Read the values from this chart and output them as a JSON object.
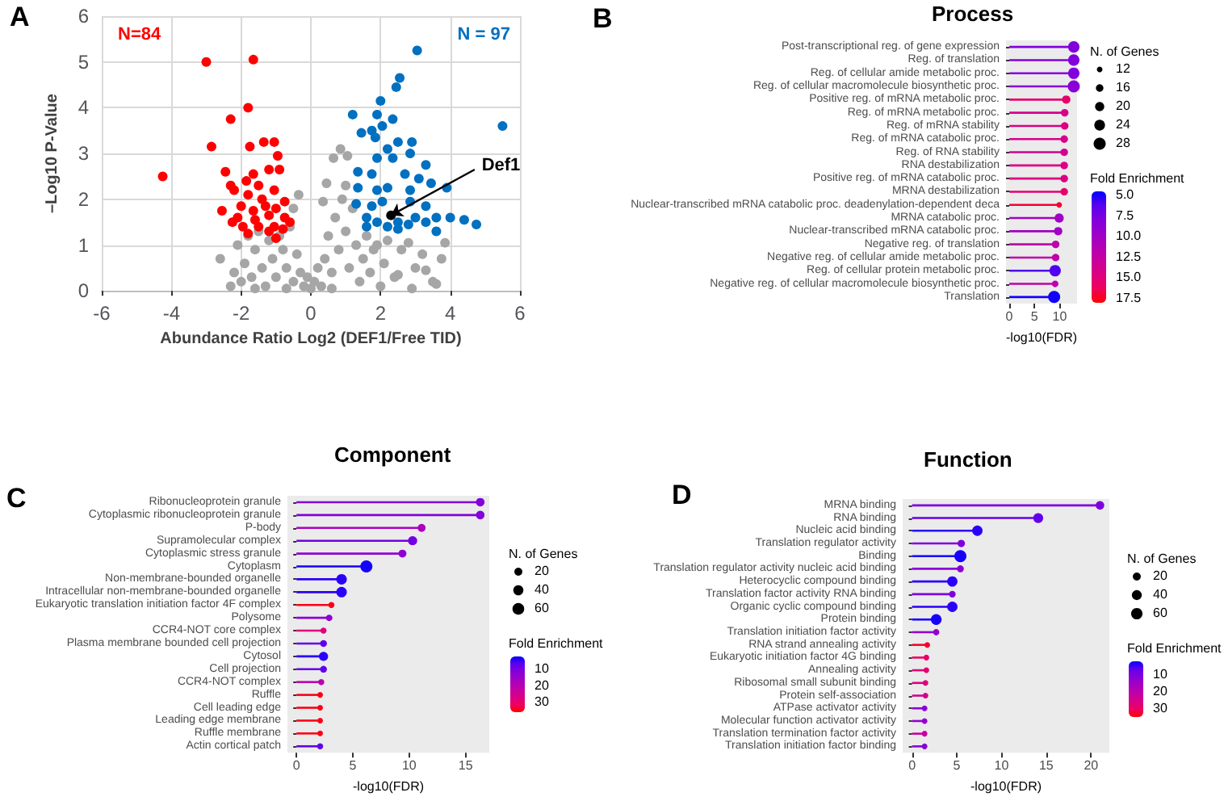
{
  "chart_data": [
    {
      "type": "scatter",
      "xlabel": "Abundance Ratio Log2 (DEF1/Free TID)",
      "ylabel": "–Log10 P-Value",
      "xlim": [
        -6,
        6
      ],
      "ylim": [
        0,
        6
      ],
      "xticks": [
        -6,
        -4,
        -2,
        0,
        2,
        4,
        6
      ],
      "yticks": [
        0,
        1,
        2,
        3,
        4,
        5,
        6
      ],
      "grid": true,
      "marker": "circle",
      "annotations": [
        "A",
        {
          "text": "Def1",
          "x": 2.3,
          "y": 1.65
        }
      ],
      "series": [
        {
          "color": "#a6a6a6",
          "x": [
            -2.6,
            -2.3,
            -2.2,
            -2.1,
            -2.0,
            -1.9,
            -1.8,
            -1.7,
            -1.6,
            -1.5,
            -1.4,
            -1.3,
            -1.2,
            -1.1,
            -1.0,
            -0.9,
            -0.8,
            -0.7,
            -0.6,
            -0.5,
            -0.5,
            -0.35,
            -0.4,
            -0.3,
            -0.2,
            -0.1,
            0,
            0.1,
            0.2,
            0.3,
            0.35,
            0.4,
            0.45,
            0.5,
            0.6,
            0.65,
            0.7,
            0.8,
            0.85,
            0.9,
            1.0,
            1.05,
            1.0,
            1.1,
            1.2,
            1.3,
            1.4,
            1.5,
            1.6,
            1.7,
            1.8,
            1.9,
            2.0,
            2.1,
            2.2,
            2.4,
            2.5,
            2.6,
            2.8,
            2.9,
            3.0,
            3.2,
            3.3,
            3.5,
            3.6,
            3.75,
            3.85,
            -1.6,
            -0.7,
            0.6
          ],
          "values": [
            0.7,
            0.1,
            0.4,
            1.0,
            0.2,
            0.6,
            1.2,
            0.3,
            0.9,
            1.3,
            0.5,
            0.1,
            1.1,
            0.7,
            0.3,
            1.2,
            0.9,
            0.5,
            1.4,
            0.2,
            1.8,
            2.1,
            0.8,
            0.4,
            0.1,
            0.3,
            0.05,
            0.2,
            0.5,
            0.1,
            1.95,
            0.7,
            2.35,
            1.2,
            0.4,
            2.9,
            1.6,
            0.9,
            3.1,
            2.0,
            1.3,
            2.95,
            2.3,
            0.5,
            1.8,
            1.0,
            0.2,
            0.7,
            1.2,
            0.4,
            0.9,
            1.0,
            0.1,
            0.6,
            1.1,
            0.3,
            0.35,
            0.9,
            1.05,
            0.05,
            0.5,
            0.8,
            0.45,
            0.2,
            0.15,
            0.7,
            1.05,
            0.05,
            0.05,
            0.05
          ]
        },
        {
          "name": "N=84",
          "color": "#ff0000",
          "x": [
            -3.0,
            -1.65,
            -1.8,
            -2.3,
            -2.85,
            -1.75,
            -4.25,
            -2.45,
            -2.3,
            -2.55,
            -1.35,
            -1.05,
            -0.95,
            -1.2,
            -1.65,
            -1.85,
            -1.5,
            -0.9,
            -1.8,
            -1.3,
            -1.05,
            -0.75,
            -2.1,
            -1.65,
            -1.2,
            -0.75,
            -1.95,
            -1.5,
            -1.05,
            -0.6,
            -2.25,
            -1.8,
            -1.2,
            -1.0,
            -2.0,
            -1.4,
            -1.0,
            -0.8,
            -2.2,
            -1.6
          ],
          "values": [
            5.0,
            5.05,
            4.0,
            3.75,
            3.15,
            3.15,
            2.5,
            2.6,
            2.3,
            1.75,
            3.25,
            3.25,
            2.95,
            2.65,
            2.55,
            2.4,
            2.3,
            2.65,
            2.1,
            1.85,
            2.2,
            1.95,
            1.6,
            1.75,
            1.65,
            1.6,
            1.4,
            1.4,
            1.4,
            1.5,
            1.5,
            1.25,
            1.3,
            1.15,
            1.85,
            2.0,
            1.8,
            1.35,
            2.2,
            1.55
          ]
        },
        {
          "name": "N = 97",
          "color": "#0070c0",
          "x": [
            3.05,
            2.55,
            2.45,
            2.0,
            5.5,
            1.2,
            1.9,
            2.35,
            1.45,
            1.75,
            2.05,
            1.85,
            2.5,
            2.9,
            2.2,
            1.9,
            2.35,
            2.85,
            1.35,
            1.75,
            2.7,
            3.3,
            3.9,
            1.35,
            1.9,
            2.2,
            2.85,
            3.45,
            1.75,
            2.05,
            2.85,
            3.3,
            3.6,
            4.0,
            4.4,
            4.75,
            3.6,
            1.6,
            1.9,
            2.5,
            3.0,
            3.3,
            1.6,
            2.2,
            2.5,
            2.8,
            1.3,
            3.1
          ],
          "values": [
            5.25,
            4.65,
            4.45,
            4.15,
            3.6,
            3.85,
            3.85,
            3.75,
            3.45,
            3.5,
            3.6,
            3.35,
            3.25,
            3.25,
            3.1,
            2.9,
            2.9,
            3.0,
            2.6,
            2.55,
            2.55,
            2.75,
            2.25,
            2.25,
            2.2,
            2.25,
            2.2,
            2.35,
            1.85,
            1.95,
            1.95,
            1.85,
            1.6,
            1.6,
            1.55,
            1.45,
            1.3,
            1.6,
            1.5,
            1.5,
            1.6,
            1.5,
            1.4,
            1.4,
            1.35,
            1.45,
            1.9,
            2.45
          ]
        },
        {
          "color": "#000000",
          "x": [
            2.3
          ],
          "values": [
            1.65
          ]
        }
      ]
    },
    {
      "type": "lollipop",
      "title": "Process",
      "xlabel": "-log10(FDR)",
      "orientation": "horizontal",
      "marker": "circle",
      "annotations": [
        "B"
      ],
      "legend_title": "N. of Genes",
      "clabel": "Fold Enrichment",
      "xlim": [
        -0.65,
        13.45
      ],
      "xticks": [
        0,
        5,
        10
      ],
      "clim": [
        4.5,
        18
      ],
      "cticks": [
        {
          "value": 5,
          "label": "5.0"
        },
        {
          "value": 7.5,
          "label": "7.5"
        },
        {
          "value": 10,
          "label": "10.0"
        },
        {
          "value": 12.5,
          "label": "12.5"
        },
        {
          "value": 15,
          "label": "15.0"
        },
        {
          "value": 17.5,
          "label": "17.5"
        }
      ],
      "size_legend": [
        12,
        16,
        20,
        24,
        28
      ],
      "categories": [
        "Post-transcriptional reg. of gene expression",
        "Reg. of translation",
        "Reg. of cellular amide metabolic proc.",
        "Reg. of cellular macromolecule biosynthetic proc.",
        "Positive reg. of mRNA metabolic proc.",
        "Reg. of mRNA metabolic proc.",
        "Reg. of mRNA stability",
        "Reg. of mRNA catabolic proc.",
        "Reg. of RNA stability",
        "RNA destabilization",
        "Positive reg. of mRNA catabolic proc.",
        "MRNA destabilization",
        "Nuclear-transcribed mRNA catabolic proc. deadenylation-dependent deca",
        "MRNA catabolic proc.",
        "Nuclear-transcribed mRNA catabolic proc.",
        "Negative reg. of translation",
        "Negative reg. of cellular amide metabolic proc.",
        "Reg. of cellular protein metabolic proc.",
        "Negative reg. of cellular macromolecule biosynthetic proc.",
        "Translation"
      ],
      "values": [
        12.8,
        12.8,
        12.8,
        12.8,
        11.3,
        11.0,
        11.0,
        10.9,
        10.9,
        10.9,
        10.9,
        10.9,
        9.9,
        9.9,
        9.7,
        9.2,
        9.2,
        9.1,
        9.1,
        8.9
      ],
      "sizes": [
        26,
        26,
        26,
        28,
        18,
        16,
        16,
        16,
        16,
        16,
        16,
        16,
        12,
        20,
        18,
        16,
        16,
        26,
        14,
        28
      ],
      "cvalues": [
        8,
        8,
        8,
        8.5,
        15.5,
        14,
        14.5,
        14,
        13.5,
        14.5,
        14.5,
        15.5,
        17,
        10,
        10,
        12,
        12,
        6,
        12,
        4.8
      ]
    },
    {
      "type": "lollipop",
      "title": "Component",
      "xlabel": "-log10(FDR)",
      "orientation": "horizontal",
      "marker": "circle",
      "annotations": [
        "C"
      ],
      "legend_title": "N. of Genes",
      "clabel": "Fold Enrichment",
      "xlim": [
        -0.8,
        17.1
      ],
      "xticks": [
        0,
        5,
        10,
        15
      ],
      "clim": [
        2,
        36
      ],
      "cticks": [
        10,
        20,
        30
      ],
      "size_legend": [
        20,
        40,
        60
      ],
      "categories": [
        "Ribonucleoprotein granule",
        "Cytoplasmic ribonucleoprotein granule",
        "P-body",
        "Supramolecular complex",
        "Cytoplasmic stress granule",
        "Cytoplasm",
        "Non-membrane-bounded organelle",
        "Intracellular non-membrane-bounded organelle",
        "Eukaryotic translation initiation factor 4F complex",
        "Polysome",
        "CCR4-NOT core complex",
        "Plasma membrane bounded cell projection",
        "Cytosol",
        "Cell projection",
        "CCR4-NOT complex",
        "Ruffle",
        "Cell leading edge",
        "Leading edge membrane",
        "Ruffle membrane",
        "Actin cortical patch"
      ],
      "values": [
        16.3,
        16.3,
        11.1,
        10.3,
        9.4,
        6.2,
        4.0,
        4.0,
        3.1,
        2.9,
        2.4,
        2.4,
        2.4,
        2.4,
        2.2,
        2.1,
        2.1,
        2.1,
        2.1,
        2.1
      ],
      "sizes": [
        25,
        25,
        20,
        30,
        20,
        65,
        45,
        45,
        8,
        10,
        8,
        12,
        30,
        12,
        8,
        6,
        6,
        6,
        6,
        8
      ],
      "cvalues": [
        11,
        11,
        17,
        9,
        13,
        3,
        4,
        4,
        35,
        12,
        28,
        7,
        4,
        7,
        20,
        35,
        35,
        35,
        35,
        7
      ]
    },
    {
      "type": "lollipop",
      "title": "Function",
      "xlabel": "-log10(FDR)",
      "orientation": "horizontal",
      "marker": "circle",
      "annotations": [
        "D"
      ],
      "legend_title": "N. of Genes",
      "clabel": "Fold Enrichment",
      "xlim": [
        -1.05,
        22.05
      ],
      "xticks": [
        0,
        5,
        10,
        15,
        20
      ],
      "clim": [
        2,
        35
      ],
      "cticks": [
        10,
        20,
        30
      ],
      "size_legend": [
        20,
        40,
        60
      ],
      "categories": [
        "MRNA binding",
        "RNA binding",
        "Nucleic acid binding",
        "Translation regulator activity",
        "Binding",
        "Translation regulator activity nucleic acid binding",
        "Heterocyclic compound binding",
        "Translation factor activity RNA binding",
        "Organic cyclic compound binding",
        "Protein binding",
        "Translation initiation factor activity",
        "RNA strand annealing activity",
        "Eukaryotic initiation factor 4G binding",
        "Annealing activity",
        "Ribosomal small subunit binding",
        "Protein self-association",
        "ATPase activator activity",
        "Molecular function activator activity",
        "Translation termination factor activity",
        "Translation initiation factor binding"
      ],
      "values": [
        21.0,
        14.1,
        7.3,
        5.5,
        5.4,
        5.4,
        4.5,
        4.5,
        4.5,
        2.7,
        2.7,
        1.7,
        1.6,
        1.6,
        1.5,
        1.5,
        1.4,
        1.4,
        1.4,
        1.4
      ],
      "sizes": [
        25,
        40,
        45,
        15,
        70,
        12,
        45,
        10,
        45,
        50,
        8,
        5,
        5,
        5,
        5,
        5,
        5,
        5,
        5,
        5
      ],
      "cvalues": [
        10,
        7,
        4,
        10,
        3,
        12,
        4,
        10,
        4,
        3,
        13,
        33,
        30,
        28,
        27,
        25,
        12,
        13,
        22,
        12
      ]
    }
  ]
}
